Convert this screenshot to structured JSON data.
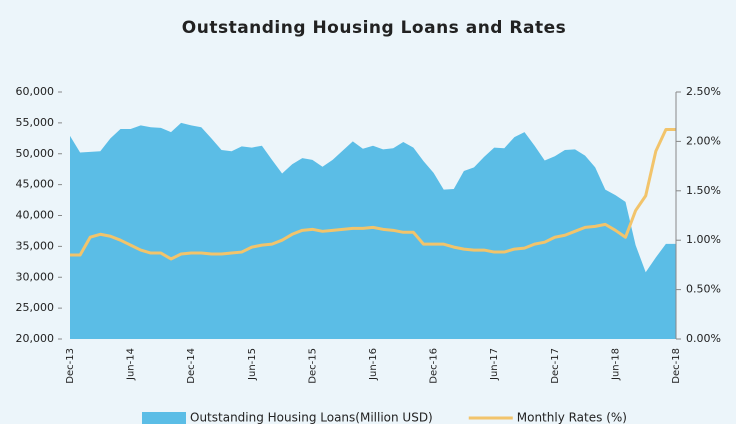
{
  "chart_data": {
    "type": "area-line",
    "title": "Outstanding Housing Loans and Rates",
    "categories": [
      "Dec-13",
      null,
      null,
      null,
      null,
      null,
      "Jun-14",
      null,
      null,
      null,
      null,
      null,
      "Dec-14",
      null,
      null,
      null,
      null,
      null,
      "Jun-15",
      null,
      null,
      null,
      null,
      null,
      "Dec-15",
      null,
      null,
      null,
      null,
      null,
      "Jun-16",
      null,
      null,
      null,
      null,
      null,
      "Dec-16",
      null,
      null,
      null,
      null,
      null,
      "Jun-17",
      null,
      null,
      null,
      null,
      null,
      "Dec-17",
      null,
      null,
      null,
      null,
      null,
      "Jun-18",
      null,
      null,
      null,
      null,
      null,
      "Dec-18"
    ],
    "series": [
      {
        "name": "Outstanding Housing Loans(Million USD)",
        "type": "area",
        "color": "#5bbde6",
        "values": [
          52900,
          50200,
          50300,
          50400,
          52500,
          54000,
          54000,
          54600,
          54300,
          54200,
          53500,
          55000,
          54600,
          54300,
          52500,
          50600,
          50400,
          51200,
          51000,
          51300,
          49000,
          46800,
          48300,
          49300,
          49000,
          47900,
          49000,
          50500,
          52000,
          50800,
          51300,
          50700,
          50900,
          51900,
          51000,
          48800,
          46900,
          44200,
          44300,
          47200,
          47800,
          49500,
          51000,
          50900,
          52700,
          53500,
          51300,
          48900,
          49600,
          50600,
          50700,
          49700,
          47800,
          44200,
          43300,
          42200,
          35200,
          30800,
          33200,
          35400,
          35400
        ]
      },
      {
        "name": "Monthly Rates (%)",
        "type": "line",
        "axis": "y2",
        "color": "#f2c46b",
        "values": [
          0.85,
          0.85,
          1.03,
          1.06,
          1.04,
          1.0,
          0.95,
          0.9,
          0.87,
          0.87,
          0.81,
          0.86,
          0.87,
          0.87,
          0.86,
          0.86,
          0.87,
          0.88,
          0.93,
          0.95,
          0.96,
          1.0,
          1.06,
          1.1,
          1.11,
          1.09,
          1.1,
          1.11,
          1.12,
          1.12,
          1.13,
          1.11,
          1.1,
          1.08,
          1.08,
          0.96,
          0.96,
          0.96,
          0.93,
          0.91,
          0.9,
          0.9,
          0.88,
          0.88,
          0.91,
          0.92,
          0.96,
          0.98,
          1.03,
          1.05,
          1.09,
          1.13,
          1.14,
          1.16,
          1.1,
          1.03,
          1.3,
          1.45,
          1.9,
          2.12,
          2.12
        ]
      }
    ],
    "ylim": [
      20000,
      60000
    ],
    "yticks": [
      {
        "value": 20000,
        "label": "20,000"
      },
      {
        "value": 25000,
        "label": "25,000"
      },
      {
        "value": 30000,
        "label": "30,000"
      },
      {
        "value": 35000,
        "label": "35,000"
      },
      {
        "value": 40000,
        "label": "40,000"
      },
      {
        "value": 45000,
        "label": "45,000"
      },
      {
        "value": 50000,
        "label": "50,000"
      },
      {
        "value": 55000,
        "label": "55,000"
      },
      {
        "value": 60000,
        "label": "60,000"
      }
    ],
    "y2lim": [
      0,
      2.5
    ],
    "y2ticks": [
      {
        "value": 0,
        "label": "0.00%"
      },
      {
        "value": 0.5,
        "label": "0.50%"
      },
      {
        "value": 1.0,
        "label": "1.00%"
      },
      {
        "value": 1.5,
        "label": "1.50%"
      },
      {
        "value": 2.0,
        "label": "2.00%"
      },
      {
        "value": 2.5,
        "label": "2.50%"
      }
    ],
    "legend": "bottom"
  }
}
